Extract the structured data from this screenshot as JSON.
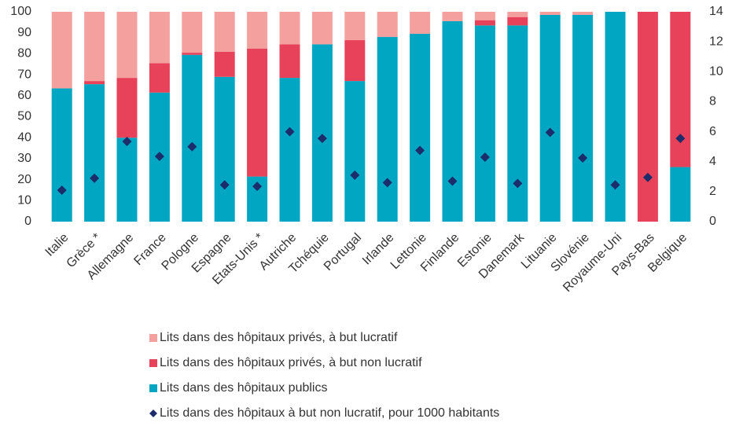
{
  "chart_data": {
    "type": "stacked-bar",
    "categories": [
      "Italie",
      "Grèce *",
      "Allemagne",
      "France",
      "Pologne",
      "Espagne",
      "Etats-Unis *",
      "Autriche",
      "Tchéquie",
      "Portugal",
      "Irlande",
      "Lettonie",
      "Finlande",
      "Estonie",
      "Danemark",
      "Lituanie",
      "Slovénie",
      "Royaume-Uni",
      "Pays-Bas",
      "Belgique"
    ],
    "series": [
      {
        "name": "Lits dans des hôpitaux privés, à but lucratif",
        "color": "#f4a09f",
        "kind": "bar",
        "values": [
          36.5,
          33,
          31.5,
          24.5,
          19.5,
          19,
          17.5,
          15.5,
          15.5,
          13.5,
          12,
          10.5,
          4.5,
          4,
          2.5,
          1.5,
          1.5,
          0,
          0,
          0
        ]
      },
      {
        "name": "Lits dans des hôpitaux privés, à but non lucratif",
        "color": "#e8415a",
        "kind": "bar",
        "values": [
          0,
          1.5,
          28.5,
          14,
          1,
          12,
          61,
          16,
          0,
          19.5,
          0,
          0,
          0,
          2.5,
          4,
          0,
          0,
          0,
          100,
          74
        ]
      },
      {
        "name": "Lits dans des hôpitaux publics",
        "color": "#00a6c2",
        "kind": "bar",
        "values": [
          63.5,
          65.5,
          40,
          61.5,
          79.5,
          69,
          21.5,
          68.5,
          84.5,
          67,
          88,
          89.5,
          95.5,
          93.5,
          93.5,
          98.5,
          98.5,
          100,
          0,
          26
        ]
      },
      {
        "name": "Lits dans des hôpitaux à but non lucratif, pour 1000 habitants",
        "color": "#1d2d6b",
        "kind": "diamond",
        "axis": "y2",
        "values": [
          2.1,
          2.9,
          5.35,
          4.35,
          5.0,
          2.45,
          2.35,
          6.0,
          5.55,
          3.1,
          2.6,
          4.75,
          2.7,
          4.3,
          2.55,
          5.95,
          4.25,
          2.45,
          2.95,
          5.55
        ]
      }
    ],
    "ylim": [
      0,
      100
    ],
    "yticks": [
      0,
      10,
      20,
      30,
      40,
      50,
      60,
      70,
      80,
      90,
      100
    ],
    "y2lim": [
      0,
      14
    ],
    "y2ticks": [
      0,
      2,
      4,
      6,
      8,
      10,
      12,
      14
    ]
  }
}
